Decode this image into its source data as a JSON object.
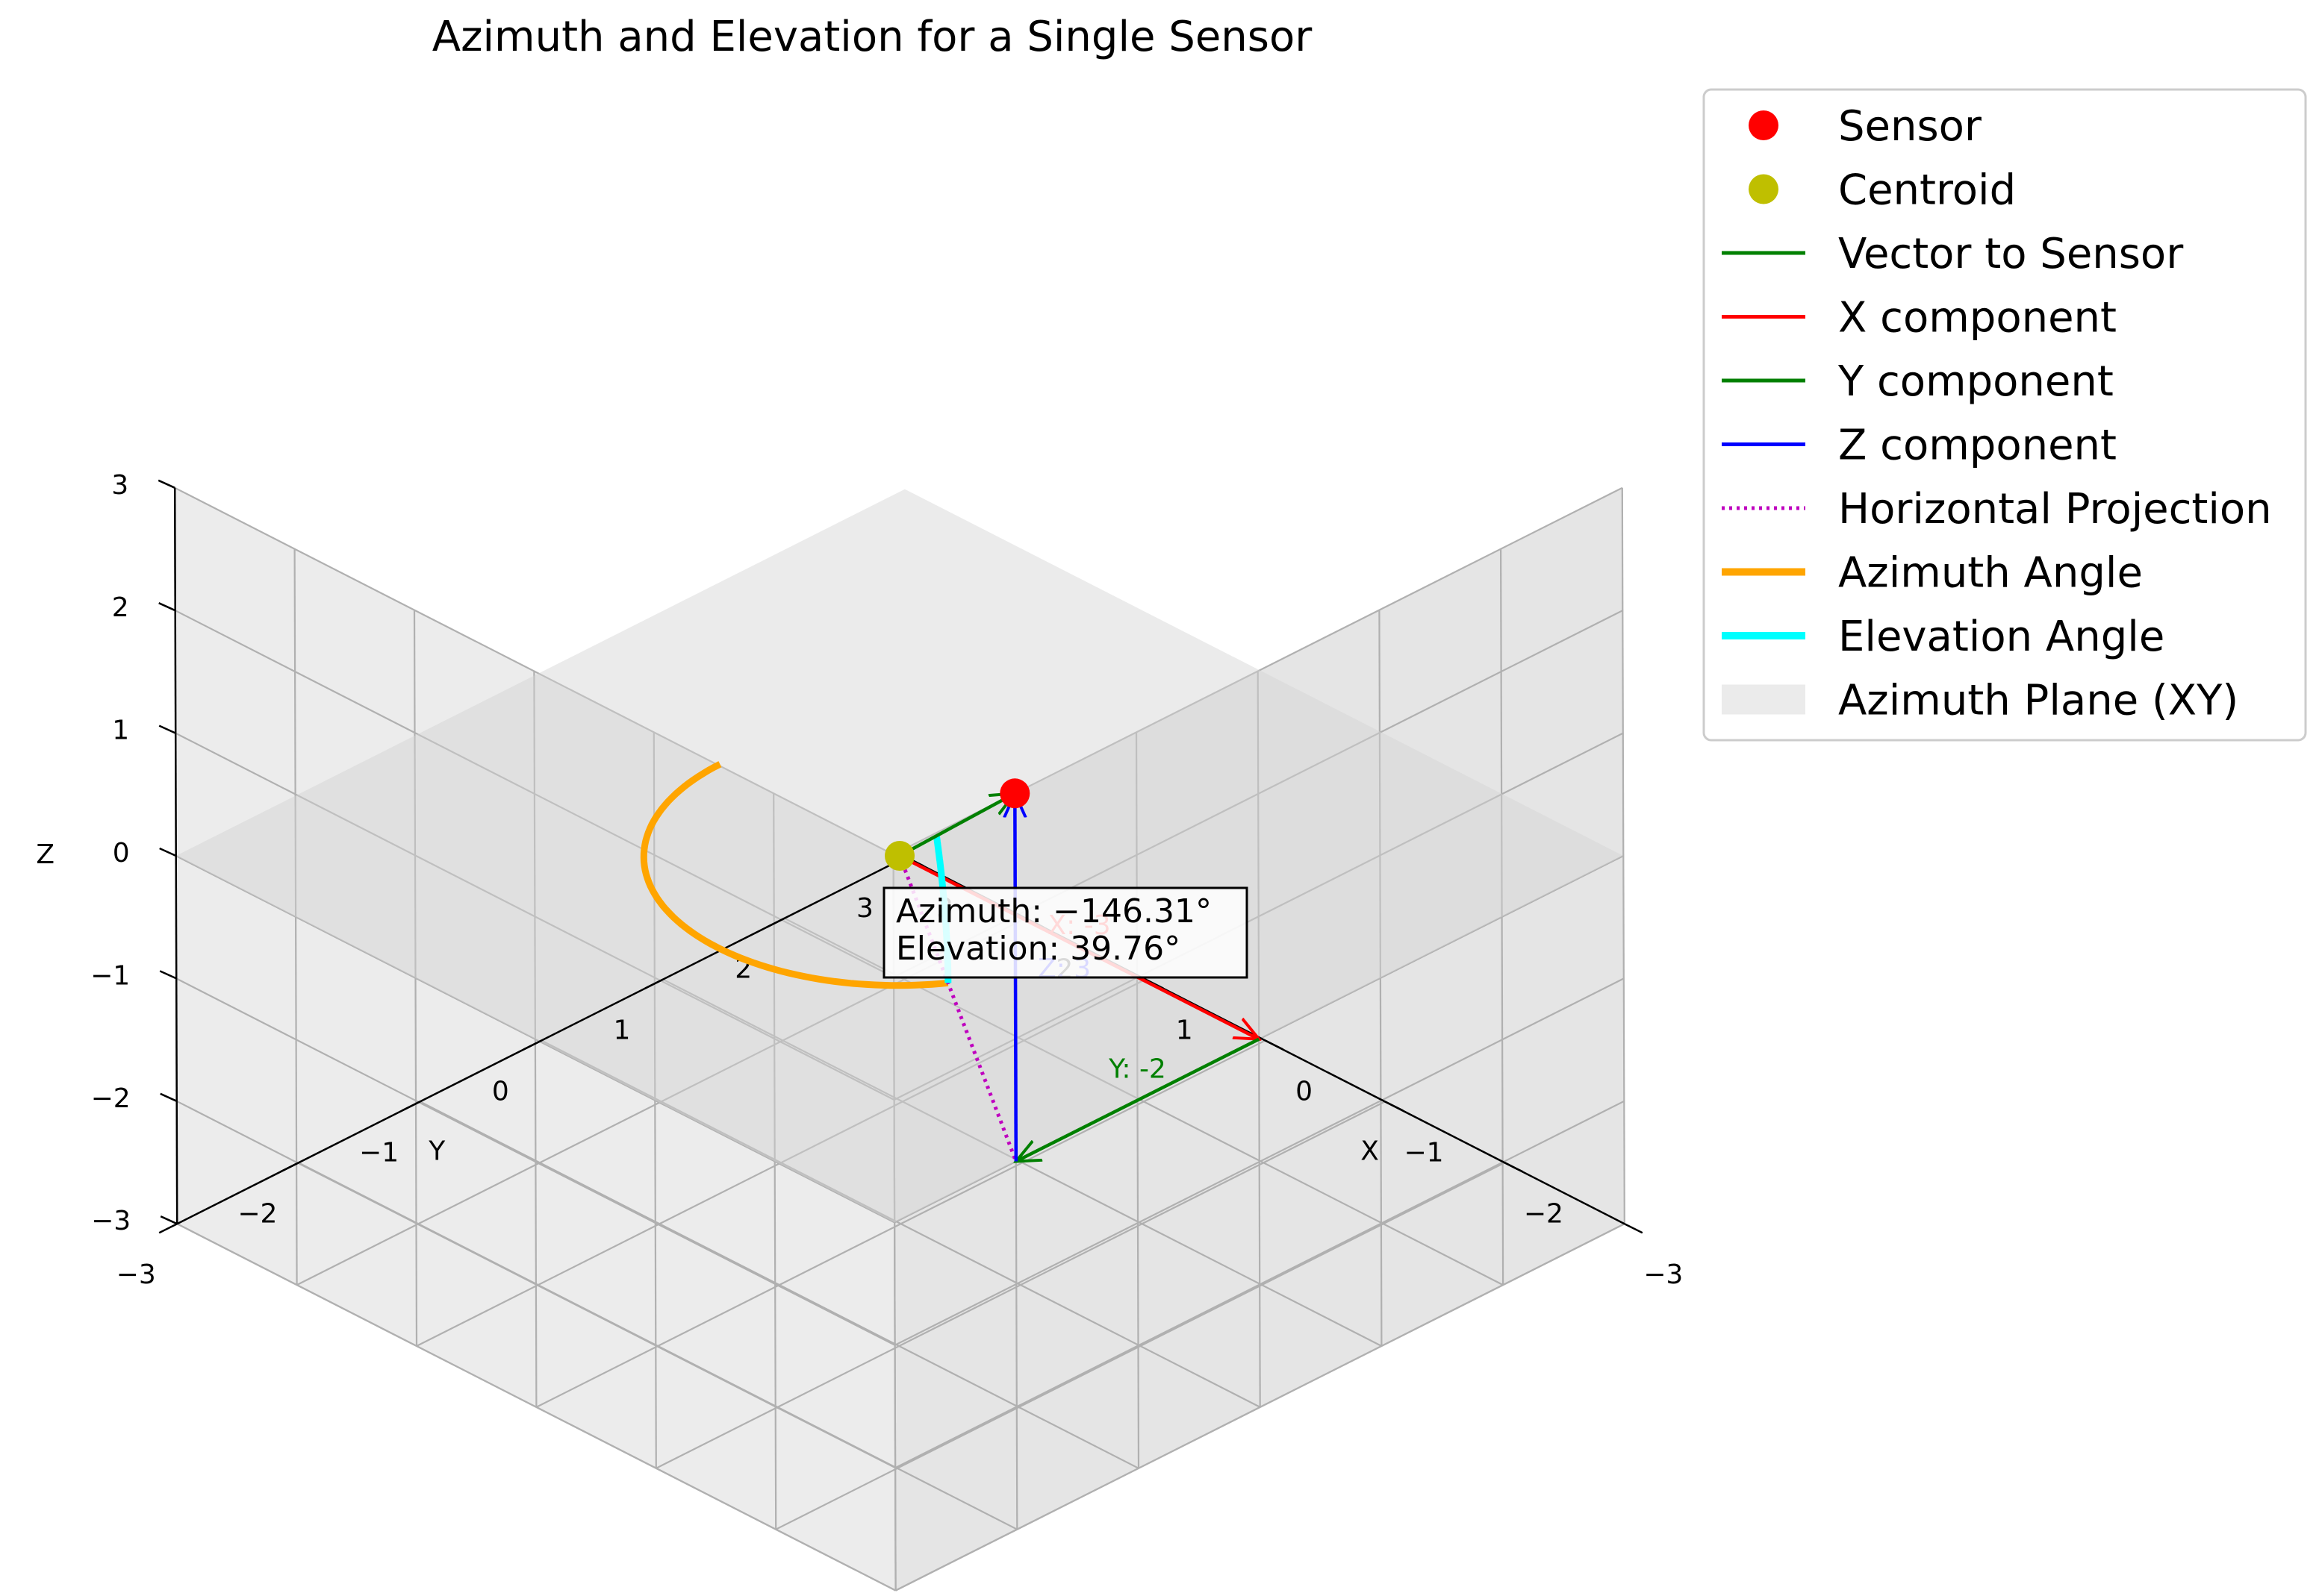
{
  "chart_data": {
    "type": "scatter3d",
    "title": "Azimuth and Elevation for a Single Sensor",
    "xlabel": "X",
    "ylabel": "Y",
    "zlabel": "Z",
    "xlim": [
      -3,
      3
    ],
    "ylim": [
      -3,
      3
    ],
    "zlim": [
      -3,
      3
    ],
    "ticks": [
      -3,
      -2,
      -1,
      0,
      1,
      2,
      3
    ],
    "tick_labels": [
      "−3",
      "−2",
      "−1",
      "0",
      "1",
      "2",
      "3"
    ],
    "grid": true,
    "legend_position": "outside-right",
    "centroid": {
      "name": "Centroid",
      "x": 0,
      "y": 0,
      "z": 0,
      "color": "#bfbf00"
    },
    "sensor": {
      "name": "Sensor",
      "x": -3,
      "y": -2,
      "z": 3,
      "color": "#ff0000"
    },
    "vector": {
      "name": "Vector to Sensor",
      "color": "#008000"
    },
    "components": [
      {
        "name": "X component",
        "label": "X: -3",
        "color": "#ff0000",
        "from": [
          0,
          0,
          0
        ],
        "to": [
          -3,
          0,
          0
        ]
      },
      {
        "name": "Y component",
        "label": "Y: -2",
        "color": "#008000",
        "from": [
          -3,
          0,
          0
        ],
        "to": [
          -3,
          -2,
          0
        ]
      },
      {
        "name": "Z component",
        "label": "Z: 3",
        "color": "#0000ff",
        "from": [
          -3,
          -2,
          0
        ],
        "to": [
          -3,
          -2,
          3
        ]
      }
    ],
    "projection": {
      "name": "Horizontal Projection",
      "color": "#bf00bf"
    },
    "azimuth_arc": {
      "name": "Azimuth Angle",
      "color": "#ffa500",
      "radius": 1.5,
      "start_deg": 0,
      "end_deg": -146.31
    },
    "elevation_arc": {
      "name": "Elevation Angle",
      "color": "#00ffff",
      "radius": 1.5,
      "elevation_deg": 39.76
    },
    "plane": {
      "name": "Azimuth Plane (XY)",
      "color": "#d3d3d3",
      "z": 0
    },
    "azimuth_deg": -146.31,
    "elevation_deg": 39.76,
    "info_lines": [
      "Azimuth: −146.31°",
      "Elevation: 39.76°"
    ],
    "legend": [
      {
        "label": "Sensor",
        "kind": "marker",
        "color": "#ff0000"
      },
      {
        "label": "Centroid",
        "kind": "marker",
        "color": "#bfbf00"
      },
      {
        "label": "Vector to Sensor",
        "kind": "line",
        "color": "#008000"
      },
      {
        "label": "X component",
        "kind": "line",
        "color": "#ff0000"
      },
      {
        "label": "Y component",
        "kind": "line",
        "color": "#008000"
      },
      {
        "label": "Z component",
        "kind": "line",
        "color": "#0000ff"
      },
      {
        "label": "Horizontal Projection",
        "kind": "dotted",
        "color": "#bf00bf"
      },
      {
        "label": "Azimuth Angle",
        "kind": "thick",
        "color": "#ffa500"
      },
      {
        "label": "Elevation Angle",
        "kind": "thick",
        "color": "#00ffff"
      },
      {
        "label": "Azimuth Plane (XY)",
        "kind": "patch",
        "color": "#d3d3d3"
      }
    ]
  }
}
